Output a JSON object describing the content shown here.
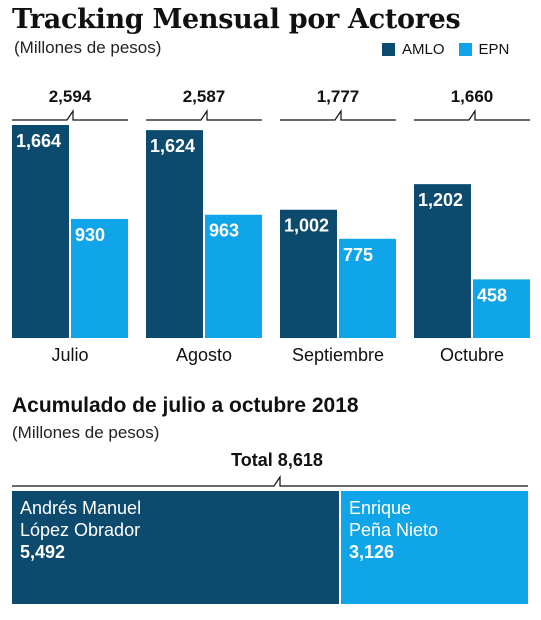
{
  "header": {
    "title": "Tracking Mensual por Actores",
    "subtitle": "(Millones de pesos)"
  },
  "legend": [
    {
      "label": "AMLO",
      "color": "#0c4a6e"
    },
    {
      "label": "EPN",
      "color": "#10a5e8"
    }
  ],
  "chart_data": [
    {
      "type": "bar",
      "title": "Tracking Mensual por Actores",
      "subtitle": "(Millones de pesos)",
      "categories": [
        "Julio",
        "Agosto",
        "Septiembre",
        "Octubre"
      ],
      "totals": [
        "2,594",
        "2,587",
        "1,777",
        "1,660"
      ],
      "series": [
        {
          "name": "AMLO",
          "color": "#0c4a6e",
          "values": [
            1664,
            1624,
            1002,
            1202
          ],
          "labels": [
            "1,664",
            "1,624",
            "1,002",
            "1,202"
          ]
        },
        {
          "name": "EPN",
          "color": "#10a5e8",
          "values": [
            930,
            963,
            775,
            458
          ],
          "labels": [
            "930",
            "963",
            "775",
            "458"
          ]
        }
      ],
      "legend_position": "top-right",
      "grid": false
    },
    {
      "type": "bar",
      "title": "Acumulado de julio a octubre 2018",
      "subtitle": "(Millones de pesos)",
      "total_label": "Total 8,618",
      "total": 8618,
      "segments": [
        {
          "name_line1": "Andrés Manuel",
          "name_line2": "López Obrador",
          "value": 5492,
          "value_label": "5,492",
          "color": "#0c4a6e"
        },
        {
          "name_line1": "Enrique",
          "name_line2": "Peña Nieto",
          "value": 3126,
          "value_label": "3,126",
          "color": "#10a5e8"
        }
      ]
    }
  ]
}
